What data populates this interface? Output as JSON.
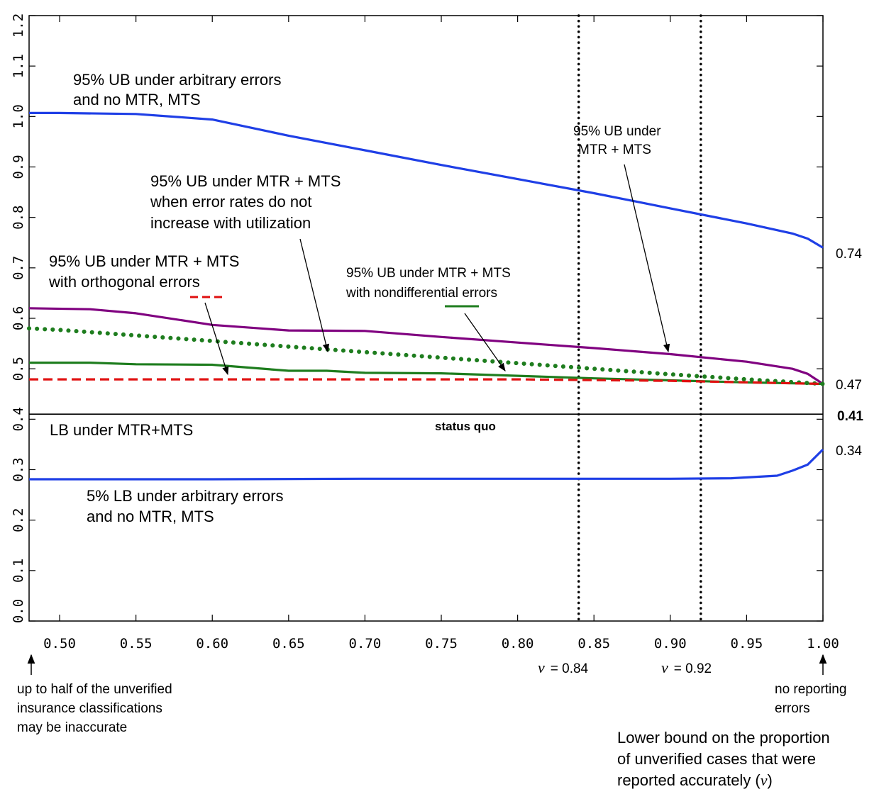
{
  "chart_data": {
    "type": "line",
    "xlim": [
      0.48,
      1.0
    ],
    "ylim": [
      0.0,
      1.2
    ],
    "x_ticks": [
      "0.50",
      "0.55",
      "0.60",
      "0.65",
      "0.70",
      "0.75",
      "0.80",
      "0.85",
      "0.90",
      "0.95",
      "1.00"
    ],
    "y_ticks": [
      "0.0",
      "0.1",
      "0.2",
      "0.3",
      "0.4",
      "0.5",
      "0.6",
      "0.7",
      "0.8",
      "0.9",
      "1.0",
      "1.1",
      "1.2"
    ],
    "xlabel": "Lower bound on the proportion of unverified cases that were reported accurately (ν)",
    "xlabel_lines": [
      "Lower bound on the proportion",
      "of unverified cases that were",
      "reported accurately ("
    ],
    "xlabel_symbol": "ν",
    "series": [
      {
        "color": "#1f3fe6",
        "style": "solid",
        "x": [
          0.48,
          0.5,
          0.55,
          0.6,
          0.65,
          0.7,
          0.75,
          0.8,
          0.85,
          0.9,
          0.95,
          0.98,
          0.99,
          1.0
        ],
        "y": [
          1.007,
          1.007,
          1.005,
          0.994,
          0.962,
          0.933,
          0.904,
          0.876,
          0.848,
          0.818,
          0.788,
          0.768,
          0.758,
          0.74
        ]
      },
      {
        "color": "#800080",
        "style": "solid",
        "x": [
          0.48,
          0.52,
          0.55,
          0.6,
          0.65,
          0.7,
          0.75,
          0.8,
          0.85,
          0.9,
          0.95,
          0.98,
          0.99,
          1.0
        ],
        "y": [
          0.62,
          0.618,
          0.61,
          0.587,
          0.576,
          0.575,
          0.563,
          0.552,
          0.541,
          0.529,
          0.514,
          0.5,
          0.49,
          0.47
        ]
      },
      {
        "color": "#1e7d1e",
        "style": "dotted",
        "x": [
          0.48,
          0.5,
          0.55,
          0.6,
          0.65,
          0.7,
          0.75,
          0.8,
          0.85,
          0.9,
          0.95,
          1.0
        ],
        "y": [
          0.58,
          0.577,
          0.566,
          0.555,
          0.544,
          0.533,
          0.522,
          0.511,
          0.5,
          0.489,
          0.479,
          0.47
        ]
      },
      {
        "color": "#1e7d1e",
        "style": "solid",
        "x": [
          0.48,
          0.52,
          0.55,
          0.6,
          0.65,
          0.675,
          0.7,
          0.75,
          0.8,
          0.85,
          0.9,
          0.95,
          1.0
        ],
        "y": [
          0.512,
          0.512,
          0.509,
          0.508,
          0.496,
          0.496,
          0.492,
          0.491,
          0.486,
          0.481,
          0.477,
          0.473,
          0.47
        ]
      },
      {
        "color": "#e01010",
        "style": "dashed",
        "x": [
          0.48,
          0.6,
          0.7,
          0.8,
          0.9,
          1.0
        ],
        "y": [
          0.479,
          0.479,
          0.479,
          0.479,
          0.476,
          0.47
        ]
      },
      {
        "color": "#000000",
        "style": "solid",
        "x": [
          0.48,
          1.0
        ],
        "y": [
          0.41,
          0.41
        ]
      },
      {
        "color": "#1f3fe6",
        "style": "solid",
        "x": [
          0.48,
          0.6,
          0.7,
          0.8,
          0.9,
          0.94,
          0.97,
          0.98,
          0.99,
          1.0
        ],
        "y": [
          0.281,
          0.281,
          0.282,
          0.282,
          0.282,
          0.283,
          0.288,
          0.298,
          0.31,
          0.34
        ]
      }
    ],
    "vlines": [
      {
        "x": 0.84,
        "label_value": "= 0.84"
      },
      {
        "x": 0.92,
        "label_value": "= 0.92"
      }
    ],
    "end_values": [
      "0.74",
      "0.47",
      "0.41",
      "0.34"
    ],
    "annotations": {
      "ub_arbitrary": [
        "95% UB under arbitrary errors",
        "and no MTR, MTS"
      ],
      "ub_mtr_mts": [
        "95% UB under",
        "MTR + MTS"
      ],
      "ub_no_increase": [
        "95% UB under MTR + MTS",
        "when error rates do not",
        "increase with utilization"
      ],
      "ub_orthogonal": [
        "95% UB under MTR + MTS",
        "with orthogonal errors"
      ],
      "ub_nondiff": [
        "95% UB under MTR + MTS",
        "with nondifferential errors"
      ],
      "lb_mtr": "LB under MTR+MTS",
      "status_quo": "status quo",
      "lb_arbitrary": [
        "5% LB under arbitrary errors",
        "and no MTR, MTS"
      ],
      "note_left": [
        "up to half of the unverified",
        "insurance classifications",
        "may be inaccurate"
      ],
      "note_right": [
        "no reporting",
        "errors"
      ]
    }
  }
}
